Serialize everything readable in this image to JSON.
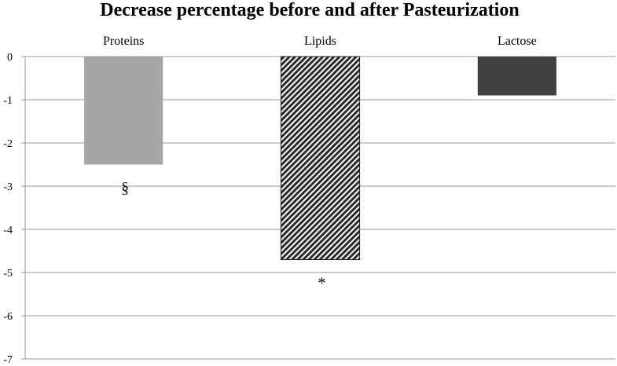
{
  "chart_data": {
    "type": "bar",
    "title": "Decrease percentage before and after Pasteurization",
    "categories": [
      "Proteins",
      "Lipids",
      "Lactose"
    ],
    "values": [
      -2.5,
      -4.7,
      -0.9
    ],
    "annotations": [
      "§",
      "*",
      ""
    ],
    "ylim": [
      -7,
      0
    ],
    "yticks": [
      0,
      -1,
      -2,
      -3,
      -4,
      -5,
      -6,
      -7
    ],
    "xlabel": "",
    "ylabel": "",
    "grid": true,
    "bar_styles": [
      {
        "fill": "#a6a6a6",
        "pattern": "solid"
      },
      {
        "fill": "#3a3a3a",
        "pattern": "diagonal-hatch"
      },
      {
        "fill": "#404040",
        "pattern": "solid"
      }
    ]
  }
}
